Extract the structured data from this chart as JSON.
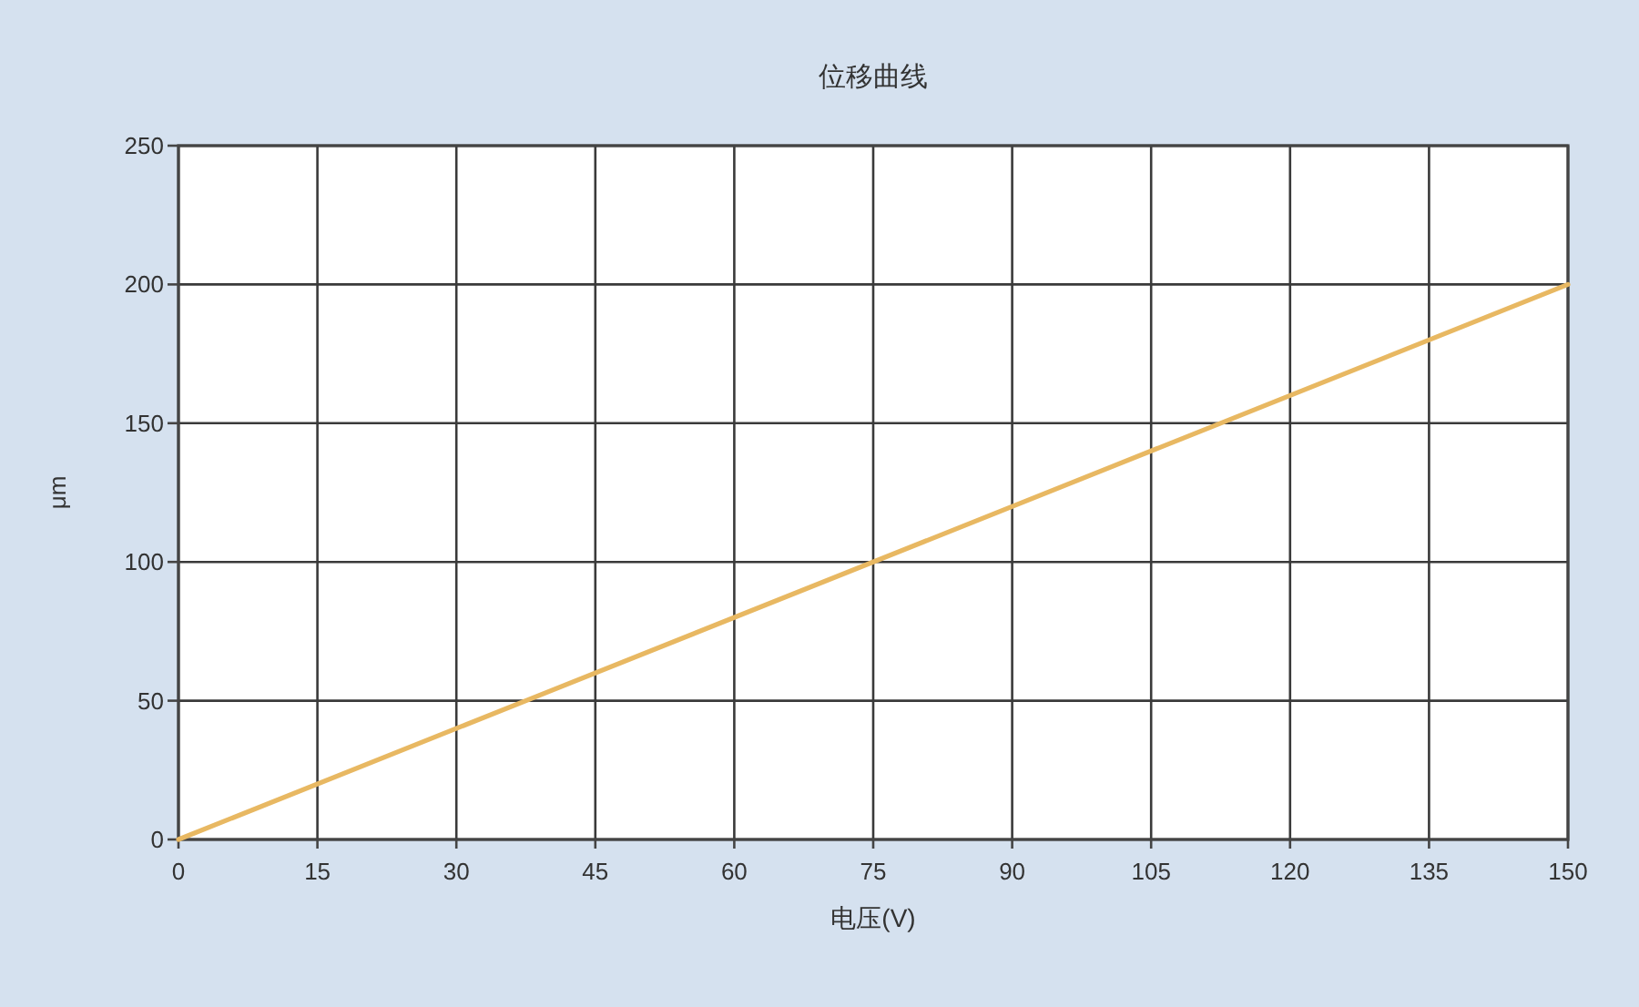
{
  "chart_data": {
    "type": "line",
    "title": "位移曲线",
    "xlabel": "电压(V)",
    "ylabel": "μm",
    "x": [
      0,
      150
    ],
    "series": [
      {
        "color": "#e8b862",
        "values": [
          0,
          200
        ]
      }
    ],
    "xlim": [
      0,
      150
    ],
    "ylim": [
      0,
      250
    ],
    "xticks": [
      0,
      15,
      30,
      45,
      60,
      75,
      90,
      105,
      120,
      135,
      150
    ],
    "yticks": [
      0,
      50,
      100,
      150,
      200,
      250
    ],
    "grid": true,
    "line_style": "solid"
  }
}
